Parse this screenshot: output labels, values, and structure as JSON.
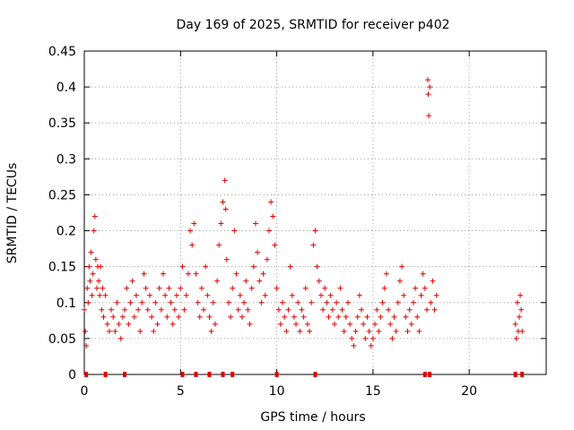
{
  "chart_data": {
    "type": "scatter",
    "title": "Day 169 of 2025, SRMTID for receiver p402",
    "xlabel": "GPS time / hours",
    "ylabel": "SRMTID / TECUs",
    "xlim": [
      0,
      24
    ],
    "ylim": [
      0,
      0.45
    ],
    "xticks": [
      0,
      5,
      10,
      15,
      20
    ],
    "yticks": [
      0,
      0.05,
      0.1,
      0.15,
      0.2,
      0.25,
      0.3,
      0.35,
      0.4,
      0.45
    ],
    "x_tick_labels": [
      "0",
      "5",
      "10",
      "15",
      "20"
    ],
    "y_tick_labels": [
      "0",
      "0.05",
      "0.1",
      "0.15",
      "0.2",
      "0.25",
      "0.3",
      "0.35",
      "0.4",
      "0.45"
    ],
    "grid": true,
    "marker_color": "#e00000",
    "series": [
      {
        "name": "SRMTID",
        "points": [
          [
            0.0,
            0.09
          ],
          [
            0.05,
            0.06
          ],
          [
            0.1,
            0.04
          ],
          [
            0.15,
            0.12
          ],
          [
            0.2,
            0.1
          ],
          [
            0.25,
            0.15
          ],
          [
            0.3,
            0.13
          ],
          [
            0.35,
            0.17
          ],
          [
            0.4,
            0.11
          ],
          [
            0.45,
            0.14
          ],
          [
            0.5,
            0.2
          ],
          [
            0.55,
            0.22
          ],
          [
            0.6,
            0.16
          ],
          [
            0.65,
            0.12
          ],
          [
            0.7,
            0.15
          ],
          [
            0.75,
            0.13
          ],
          [
            0.8,
            0.11
          ],
          [
            0.85,
            0.15
          ],
          [
            0.9,
            0.09
          ],
          [
            0.95,
            0.12
          ],
          [
            1.0,
            0.08
          ],
          [
            1.1,
            0.11
          ],
          [
            1.2,
            0.07
          ],
          [
            1.3,
            0.06
          ],
          [
            1.4,
            0.09
          ],
          [
            1.5,
            0.08
          ],
          [
            1.6,
            0.06
          ],
          [
            1.7,
            0.1
          ],
          [
            1.8,
            0.07
          ],
          [
            1.9,
            0.05
          ],
          [
            2.0,
            0.08
          ],
          [
            2.1,
            0.09
          ],
          [
            2.2,
            0.12
          ],
          [
            2.3,
            0.07
          ],
          [
            2.4,
            0.1
          ],
          [
            2.5,
            0.13
          ],
          [
            2.6,
            0.08
          ],
          [
            2.7,
            0.11
          ],
          [
            2.8,
            0.09
          ],
          [
            2.9,
            0.06
          ],
          [
            3.0,
            0.1
          ],
          [
            3.1,
            0.14
          ],
          [
            3.2,
            0.12
          ],
          [
            3.3,
            0.09
          ],
          [
            3.4,
            0.11
          ],
          [
            3.5,
            0.08
          ],
          [
            3.6,
            0.06
          ],
          [
            3.7,
            0.1
          ],
          [
            3.8,
            0.07
          ],
          [
            3.9,
            0.12
          ],
          [
            4.0,
            0.09
          ],
          [
            4.1,
            0.14
          ],
          [
            4.2,
            0.11
          ],
          [
            4.3,
            0.08
          ],
          [
            4.4,
            0.12
          ],
          [
            4.5,
            0.1
          ],
          [
            4.6,
            0.07
          ],
          [
            4.7,
            0.09
          ],
          [
            4.8,
            0.11
          ],
          [
            4.9,
            0.08
          ],
          [
            5.0,
            0.12
          ],
          [
            5.1,
            0.15
          ],
          [
            5.2,
            0.09
          ],
          [
            5.3,
            0.11
          ],
          [
            5.4,
            0.14
          ],
          [
            5.5,
            0.2
          ],
          [
            5.6,
            0.18
          ],
          [
            5.7,
            0.21
          ],
          [
            5.8,
            0.14
          ],
          [
            5.9,
            0.1
          ],
          [
            6.0,
            0.08
          ],
          [
            6.1,
            0.12
          ],
          [
            6.2,
            0.09
          ],
          [
            6.3,
            0.15
          ],
          [
            6.4,
            0.11
          ],
          [
            6.5,
            0.08
          ],
          [
            6.6,
            0.06
          ],
          [
            6.7,
            0.1
          ],
          [
            6.8,
            0.07
          ],
          [
            6.9,
            0.13
          ],
          [
            7.0,
            0.18
          ],
          [
            7.1,
            0.21
          ],
          [
            7.2,
            0.24
          ],
          [
            7.3,
            0.27
          ],
          [
            7.35,
            0.23
          ],
          [
            7.4,
            0.16
          ],
          [
            7.5,
            0.1
          ],
          [
            7.6,
            0.08
          ],
          [
            7.7,
            0.12
          ],
          [
            7.8,
            0.2
          ],
          [
            7.9,
            0.14
          ],
          [
            8.0,
            0.09
          ],
          [
            8.1,
            0.11
          ],
          [
            8.2,
            0.08
          ],
          [
            8.3,
            0.1
          ],
          [
            8.4,
            0.13
          ],
          [
            8.5,
            0.09
          ],
          [
            8.6,
            0.07
          ],
          [
            8.7,
            0.12
          ],
          [
            8.8,
            0.15
          ],
          [
            8.9,
            0.21
          ],
          [
            9.0,
            0.17
          ],
          [
            9.1,
            0.13
          ],
          [
            9.2,
            0.1
          ],
          [
            9.3,
            0.14
          ],
          [
            9.4,
            0.11
          ],
          [
            9.5,
            0.16
          ],
          [
            9.6,
            0.2
          ],
          [
            9.7,
            0.24
          ],
          [
            9.8,
            0.22
          ],
          [
            9.9,
            0.18
          ],
          [
            10.0,
            0.12
          ],
          [
            10.1,
            0.09
          ],
          [
            10.2,
            0.07
          ],
          [
            10.3,
            0.1
          ],
          [
            10.4,
            0.08
          ],
          [
            10.5,
            0.06
          ],
          [
            10.6,
            0.09
          ],
          [
            10.7,
            0.15
          ],
          [
            10.8,
            0.11
          ],
          [
            10.9,
            0.08
          ],
          [
            11.0,
            0.07
          ],
          [
            11.1,
            0.1
          ],
          [
            11.2,
            0.06
          ],
          [
            11.3,
            0.09
          ],
          [
            11.4,
            0.08
          ],
          [
            11.5,
            0.12
          ],
          [
            11.6,
            0.07
          ],
          [
            11.7,
            0.06
          ],
          [
            11.8,
            0.1
          ],
          [
            11.9,
            0.18
          ],
          [
            12.0,
            0.2
          ],
          [
            12.1,
            0.15
          ],
          [
            12.2,
            0.13
          ],
          [
            12.3,
            0.11
          ],
          [
            12.4,
            0.09
          ],
          [
            12.5,
            0.12
          ],
          [
            12.6,
            0.1
          ],
          [
            12.7,
            0.08
          ],
          [
            12.8,
            0.11
          ],
          [
            12.9,
            0.09
          ],
          [
            13.0,
            0.07
          ],
          [
            13.1,
            0.1
          ],
          [
            13.2,
            0.08
          ],
          [
            13.3,
            0.12
          ],
          [
            13.4,
            0.09
          ],
          [
            13.5,
            0.06
          ],
          [
            13.6,
            0.08
          ],
          [
            13.7,
            0.1
          ],
          [
            13.8,
            0.07
          ],
          [
            13.9,
            0.05
          ],
          [
            14.0,
            0.04
          ],
          [
            14.1,
            0.06
          ],
          [
            14.2,
            0.08
          ],
          [
            14.3,
            0.11
          ],
          [
            14.4,
            0.09
          ],
          [
            14.5,
            0.07
          ],
          [
            14.6,
            0.05
          ],
          [
            14.7,
            0.08
          ],
          [
            14.8,
            0.06
          ],
          [
            14.9,
            0.04
          ],
          [
            15.0,
            0.05
          ],
          [
            15.1,
            0.07
          ],
          [
            15.2,
            0.09
          ],
          [
            15.3,
            0.06
          ],
          [
            15.4,
            0.08
          ],
          [
            15.5,
            0.1
          ],
          [
            15.6,
            0.12
          ],
          [
            15.7,
            0.14
          ],
          [
            15.8,
            0.09
          ],
          [
            15.9,
            0.07
          ],
          [
            16.0,
            0.05
          ],
          [
            16.1,
            0.08
          ],
          [
            16.2,
            0.06
          ],
          [
            16.3,
            0.1
          ],
          [
            16.4,
            0.13
          ],
          [
            16.5,
            0.15
          ],
          [
            16.6,
            0.11
          ],
          [
            16.7,
            0.08
          ],
          [
            16.8,
            0.06
          ],
          [
            16.9,
            0.09
          ],
          [
            17.0,
            0.07
          ],
          [
            17.1,
            0.1
          ],
          [
            17.2,
            0.12
          ],
          [
            17.3,
            0.08
          ],
          [
            17.4,
            0.06
          ],
          [
            17.5,
            0.11
          ],
          [
            17.6,
            0.14
          ],
          [
            17.7,
            0.12
          ],
          [
            17.8,
            0.09
          ],
          [
            17.85,
            0.41
          ],
          [
            17.87,
            0.39
          ],
          [
            17.9,
            0.36
          ],
          [
            17.95,
            0.4
          ],
          [
            18.0,
            0.1
          ],
          [
            18.1,
            0.13
          ],
          [
            18.2,
            0.09
          ],
          [
            18.3,
            0.11
          ],
          [
            22.4,
            0.07
          ],
          [
            22.45,
            0.05
          ],
          [
            22.5,
            0.1
          ],
          [
            22.55,
            0.06
          ],
          [
            22.6,
            0.08
          ],
          [
            22.65,
            0.11
          ],
          [
            22.7,
            0.09
          ],
          [
            22.75,
            0.06
          ]
        ]
      }
    ],
    "bottom_markers_x": [
      0.1,
      1.1,
      2.1,
      5.1,
      5.8,
      6.5,
      7.2,
      7.7,
      10.0,
      12.0,
      17.7,
      17.95,
      22.4,
      22.75
    ]
  }
}
